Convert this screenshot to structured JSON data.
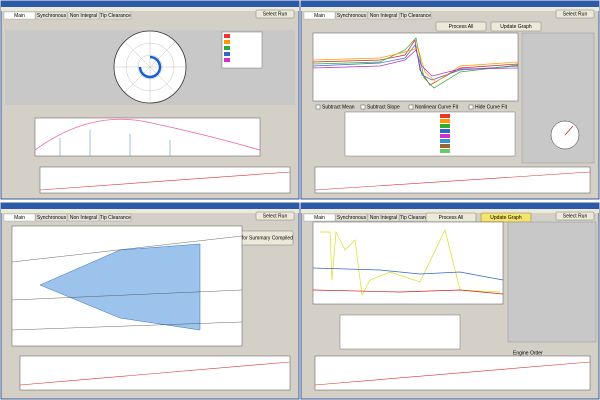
{
  "windows": [
    {
      "tabs": [
        "Main",
        "Synchronous",
        "Non Integral",
        "Tip Clearance"
      ],
      "buttons": [
        "Select Run"
      ]
    },
    {
      "tabs": [
        "Main",
        "Synchronous",
        "Non Integral",
        "Tip Clearance"
      ],
      "buttons": [
        "Select Run",
        "Process All",
        "Update Graph"
      ],
      "checkboxes": [
        "Subtract Mean",
        "Subtract Slope",
        "Nonlinear Curve Fit",
        "Hide Curve Fit"
      ]
    },
    {
      "tabs": [
        "Main",
        "Synchronous",
        "Non Integral",
        "Tip Clearance"
      ],
      "buttons": [
        "Select Run",
        "Save for Summary Compiled"
      ]
    },
    {
      "tabs": [
        "Main",
        "Synchronous",
        "Non Integral",
        "Tip Clearance"
      ],
      "buttons": [
        "Select Run",
        "Process All",
        "Update Graph"
      ],
      "labels": [
        "Engine Order"
      ]
    }
  ]
}
